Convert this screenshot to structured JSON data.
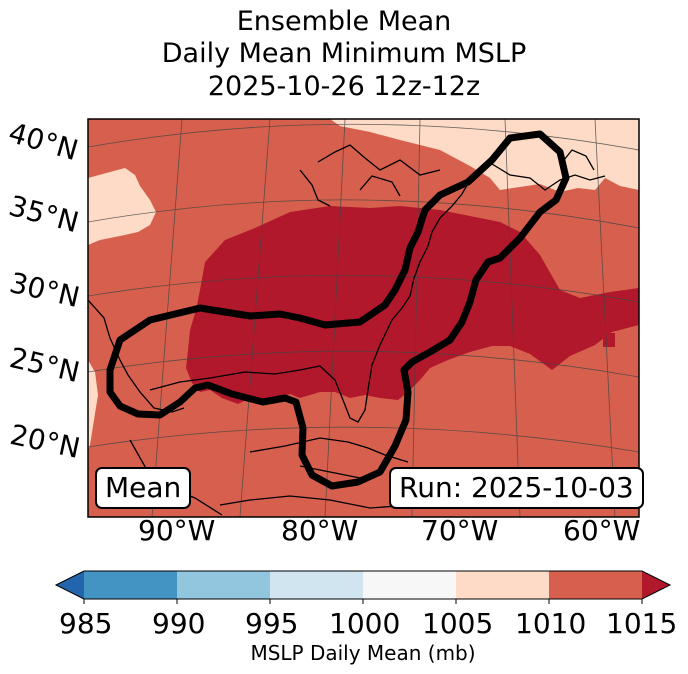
{
  "title": {
    "line1": "Ensemble Mean",
    "line2": "Daily Mean Minimum MSLP",
    "line3": "2025-10-26 12z-12z"
  },
  "map": {
    "lat_labels": [
      "40°N",
      "35°N",
      "30°N",
      "25°N",
      "20°N"
    ],
    "lon_labels": [
      "90°W",
      "80°W",
      "70°W",
      "60°W"
    ],
    "mean_box": "Mean",
    "run_box": "Run: 2025-10-03",
    "colors": {
      "below_1005": "#fddbc7",
      "range_1005_1010": "#d6604d",
      "range_1010_1015": "#b2182b",
      "outline": "#000000"
    }
  },
  "colorbar": {
    "ticks": [
      "985",
      "990",
      "995",
      "1000",
      "1005",
      "1010",
      "1015"
    ],
    "label": "MSLP Daily Mean (mb)",
    "colors": [
      "#4393c3",
      "#92c5de",
      "#d1e5f0",
      "#f7f7f7",
      "#fddbc7",
      "#d6604d",
      "#b2182b"
    ],
    "under_color": "#2166ac",
    "over_color": "#b2182b"
  }
}
